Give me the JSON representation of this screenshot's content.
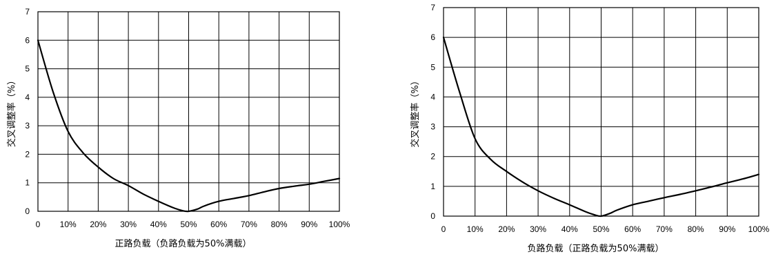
{
  "chart_data": [
    {
      "type": "line",
      "xlabel": "正路负载（负路负载为50%满载）",
      "ylabel": "交叉调整率（%）",
      "x_tick_labels": [
        "0",
        "10%",
        "20%",
        "30%",
        "40%",
        "50%",
        "60%",
        "70%",
        "80%",
        "90%",
        "100%"
      ],
      "y_tick_labels": [
        "0",
        "1",
        "2",
        "3",
        "4",
        "5",
        "6",
        "7"
      ],
      "xlim": [
        0,
        100
      ],
      "ylim": [
        0,
        7
      ],
      "grid": true,
      "series": [
        {
          "x": [
            0,
            5,
            10,
            15,
            20,
            25,
            30,
            35,
            40,
            45,
            48,
            50,
            53,
            55,
            60,
            65,
            70,
            75,
            80,
            85,
            90,
            95,
            100
          ],
          "y": [
            6.0,
            4.2,
            2.8,
            2.05,
            1.55,
            1.15,
            0.9,
            0.6,
            0.35,
            0.12,
            0.02,
            0.0,
            0.08,
            0.18,
            0.35,
            0.45,
            0.55,
            0.68,
            0.8,
            0.88,
            0.95,
            1.05,
            1.15
          ]
        }
      ]
    },
    {
      "type": "line",
      "xlabel": "负路负载（正路负载为50%满载）",
      "ylabel": "交叉调整率（%）",
      "x_tick_labels": [
        "0",
        "10%",
        "20%",
        "30%",
        "40%",
        "50%",
        "60%",
        "70%",
        "80%",
        "90%",
        "100%"
      ],
      "y_tick_labels": [
        "0",
        "1",
        "2",
        "3",
        "4",
        "5",
        "6",
        "7"
      ],
      "xlim": [
        0,
        100
      ],
      "ylim": [
        0,
        7
      ],
      "grid": true,
      "series": [
        {
          "x": [
            0,
            5,
            10,
            15,
            20,
            25,
            30,
            35,
            40,
            45,
            48,
            50,
            53,
            55,
            60,
            65,
            70,
            75,
            80,
            85,
            90,
            95,
            100
          ],
          "y": [
            6.0,
            4.2,
            2.6,
            1.9,
            1.5,
            1.15,
            0.85,
            0.6,
            0.38,
            0.15,
            0.04,
            0.0,
            0.1,
            0.2,
            0.38,
            0.5,
            0.62,
            0.73,
            0.85,
            0.98,
            1.12,
            1.25,
            1.4
          ]
        }
      ]
    }
  ]
}
